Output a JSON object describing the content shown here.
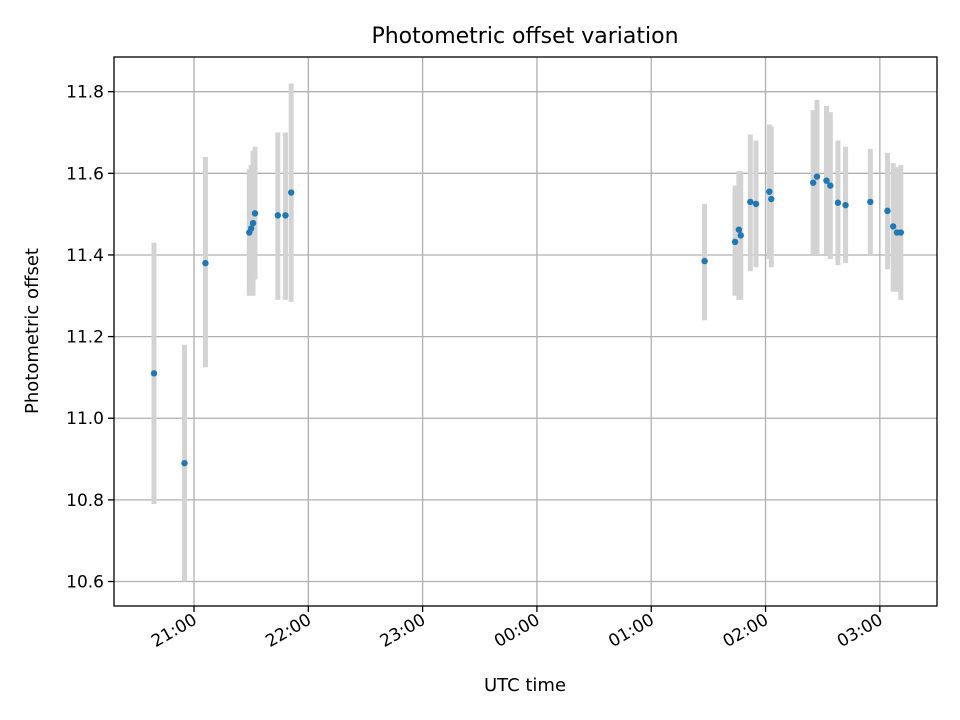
{
  "chart_data": {
    "type": "scatter",
    "title": "Photometric offset variation",
    "xlabel": "UTC time",
    "ylabel": "Photometric offset",
    "grid": true,
    "x_range_hours": [
      20.3,
      27.5
    ],
    "ylim": [
      10.54,
      11.885
    ],
    "xtick_labels": [
      "21:00",
      "22:00",
      "23:00",
      "00:00",
      "01:00",
      "02:00",
      "03:00"
    ],
    "xtick_hours": [
      21,
      22,
      23,
      24,
      25,
      26,
      27
    ],
    "ytick_labels": [
      "10.6",
      "10.8",
      "11.0",
      "11.2",
      "11.4",
      "11.6",
      "11.8"
    ],
    "ytick_values": [
      10.6,
      10.8,
      11.0,
      11.2,
      11.4,
      11.6,
      11.8
    ],
    "colors": {
      "points": "#1f77b4",
      "errorbars": "#d3d3d3",
      "grid": "#b0b0b0"
    },
    "points": [
      {
        "x": "20:39",
        "y": 11.11,
        "lo": 10.79,
        "hi": 11.43
      },
      {
        "x": "20:55",
        "y": 10.89,
        "lo": 10.6,
        "hi": 11.18
      },
      {
        "x": "21:06",
        "y": 11.38,
        "lo": 11.125,
        "hi": 11.64
      },
      {
        "x": "21:29",
        "y": 11.455,
        "lo": 11.3,
        "hi": 11.61
      },
      {
        "x": "21:30",
        "y": 11.465,
        "lo": 11.3,
        "hi": 11.62
      },
      {
        "x": "21:31",
        "y": 11.478,
        "lo": 11.3,
        "hi": 11.655
      },
      {
        "x": "21:32",
        "y": 11.502,
        "lo": 11.34,
        "hi": 11.665
      },
      {
        "x": "21:44",
        "y": 11.497,
        "lo": 11.29,
        "hi": 11.7
      },
      {
        "x": "21:48",
        "y": 11.497,
        "lo": 11.29,
        "hi": 11.7
      },
      {
        "x": "21:51",
        "y": 11.553,
        "lo": 11.285,
        "hi": 11.82
      },
      {
        "x": "01:28",
        "y": 11.385,
        "lo": 11.24,
        "hi": 11.525
      },
      {
        "x": "01:44",
        "y": 11.432,
        "lo": 11.3,
        "hi": 11.57
      },
      {
        "x": "01:46",
        "y": 11.462,
        "lo": 11.29,
        "hi": 11.605
      },
      {
        "x": "01:47",
        "y": 11.448,
        "lo": 11.29,
        "hi": 11.605
      },
      {
        "x": "01:52",
        "y": 11.53,
        "lo": 11.36,
        "hi": 11.695
      },
      {
        "x": "01:55",
        "y": 11.525,
        "lo": 11.37,
        "hi": 11.68
      },
      {
        "x": "02:02",
        "y": 11.555,
        "lo": 11.39,
        "hi": 11.72
      },
      {
        "x": "02:03",
        "y": 11.537,
        "lo": 11.37,
        "hi": 11.715
      },
      {
        "x": "02:25",
        "y": 11.577,
        "lo": 11.4,
        "hi": 11.755
      },
      {
        "x": "02:27",
        "y": 11.592,
        "lo": 11.4,
        "hi": 11.78
      },
      {
        "x": "02:32",
        "y": 11.582,
        "lo": 11.4,
        "hi": 11.765
      },
      {
        "x": "02:34",
        "y": 11.57,
        "lo": 11.39,
        "hi": 11.75
      },
      {
        "x": "02:38",
        "y": 11.528,
        "lo": 11.375,
        "hi": 11.68
      },
      {
        "x": "02:42",
        "y": 11.522,
        "lo": 11.38,
        "hi": 11.665
      },
      {
        "x": "02:55",
        "y": 11.53,
        "lo": 11.4,
        "hi": 11.66
      },
      {
        "x": "03:04",
        "y": 11.508,
        "lo": 11.365,
        "hi": 11.65
      },
      {
        "x": "03:07",
        "y": 11.47,
        "lo": 11.31,
        "hi": 11.625
      },
      {
        "x": "03:09",
        "y": 11.455,
        "lo": 11.31,
        "hi": 11.615
      },
      {
        "x": "03:11",
        "y": 11.455,
        "lo": 11.29,
        "hi": 11.62
      }
    ]
  }
}
